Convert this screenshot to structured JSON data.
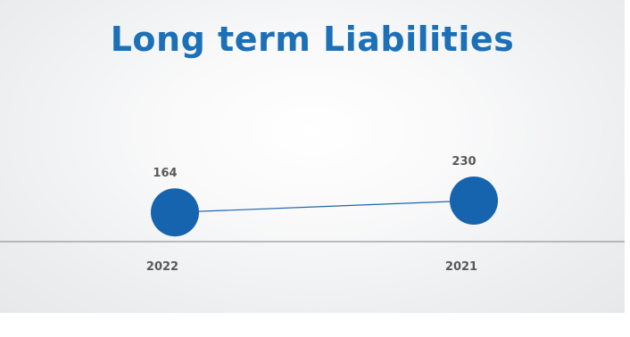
{
  "slide": {
    "title": "Long term Liabilities"
  },
  "colors": {
    "title": "#1b70b8",
    "series": "#1663ae",
    "axis": "#7f7f7f",
    "label": "#595959"
  },
  "chart_data": {
    "type": "line",
    "title": "Long term Liabilities",
    "categories": [
      "2022",
      "2021"
    ],
    "series": [
      {
        "values": [
          164,
          230
        ]
      }
    ],
    "data_labels": [
      "164",
      "230"
    ],
    "ylim": [
      0,
      300
    ],
    "grid": false,
    "legend": "none",
    "xlabel": "",
    "ylabel": ""
  }
}
